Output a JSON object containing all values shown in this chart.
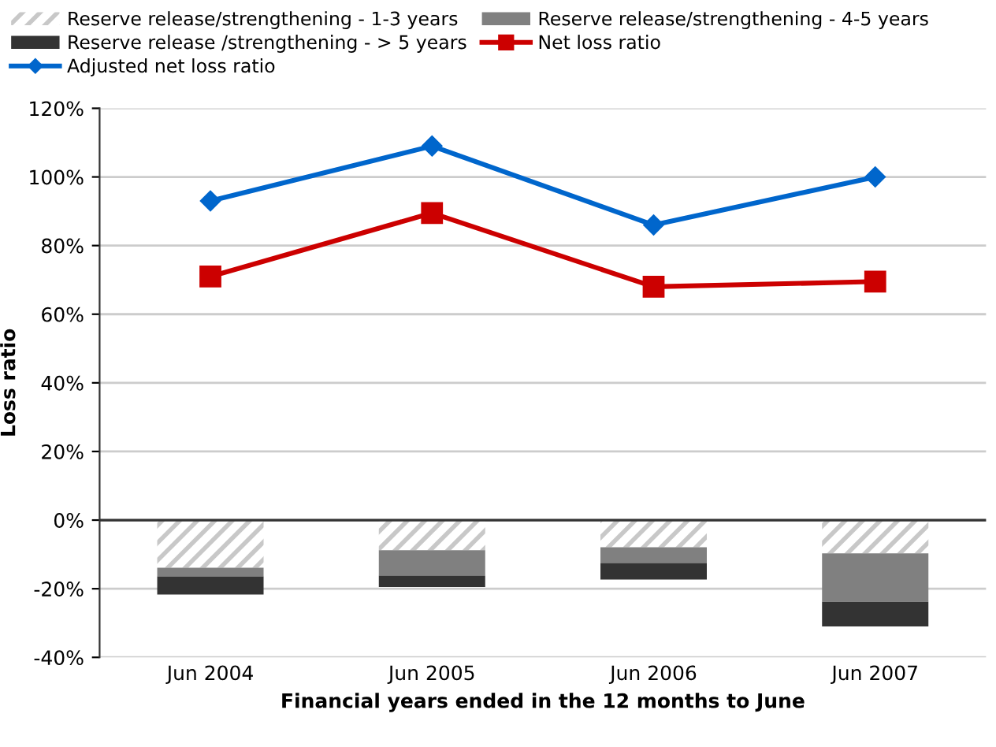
{
  "chart_data": {
    "type": "bar",
    "stacked": true,
    "ylabel": "Loss ratio",
    "xlabel": "Financial years ended in the 12 months to June",
    "categories": [
      "Jun 2004",
      "Jun 2005",
      "Jun 2006",
      "Jun 2007"
    ],
    "series": [
      {
        "name": "Reserve release/strengthening - 1-3 years",
        "color": "#c8c8c8",
        "values": [
          -13.9,
          -8.8,
          -7.9,
          -9.7
        ]
      },
      {
        "name": "Reserve release/strengthening - 4-5 years",
        "color": "#808080",
        "values": [
          -2.5,
          -7.4,
          -4.6,
          -14.1
        ]
      },
      {
        "name": "Reserve release /strengthening - > 5 years",
        "color": "#333333",
        "values": [
          -5.3,
          -3.3,
          -4.8,
          -7.2
        ]
      },
      {
        "name": "Net loss ratio",
        "type": "line",
        "color": "#cc0000",
        "marker": "square",
        "values": [
          71,
          89.5,
          68,
          69.5
        ]
      },
      {
        "name": "Adjusted net loss ratio",
        "type": "line",
        "color": "#0066cc",
        "marker": "diamond",
        "values": [
          93,
          109,
          86,
          100
        ]
      }
    ],
    "ylim": [
      -40,
      120
    ],
    "yticks": [
      {
        "value": -40,
        "label": "-40%"
      },
      {
        "value": -20,
        "label": "-20%"
      },
      {
        "value": 0,
        "label": "0%"
      },
      {
        "value": 20,
        "label": "20%"
      },
      {
        "value": 40,
        "label": "40%"
      },
      {
        "value": 60,
        "label": "60%"
      },
      {
        "value": 80,
        "label": "80%"
      },
      {
        "value": 100,
        "label": "100%"
      },
      {
        "value": 120,
        "label": "120%"
      }
    ],
    "grid": "y",
    "legend": "top"
  }
}
